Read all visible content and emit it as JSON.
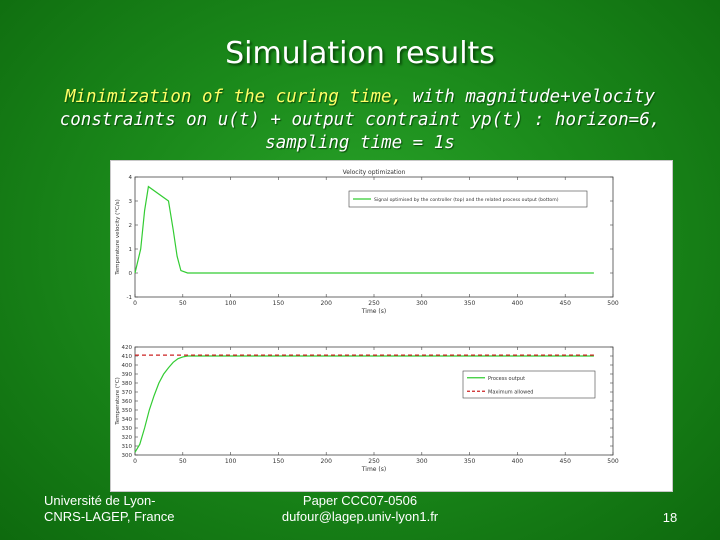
{
  "slide": {
    "title": "Simulation results",
    "subtitle_line1_italic": "Minimization of the curing time,",
    "subtitle_line1_rest": " with magnitude+velocity",
    "subtitle_line2": "constraints on u(t) + output contraint yp(t) : horizon=6,",
    "subtitle_line3": "sampling time = 1s"
  },
  "footer": {
    "left_line1": "Université de Lyon-",
    "left_line2": "CNRS-LAGEP, France",
    "center_line1": "Paper CCC07-0506",
    "center_line2": "dufour@lagep.univ-lyon1.fr",
    "page_number": "18"
  },
  "colors": {
    "green_series": "#33cc33",
    "red_series": "#cc2222",
    "axis": "#444444"
  },
  "chart_data": [
    {
      "type": "line",
      "title": "Velocity optimization",
      "xlabel": "Time (s)",
      "ylabel": "Temperature velocity (°C/s)",
      "xlim": [
        0,
        500
      ],
      "ylim": [
        -1,
        4
      ],
      "xticks": [
        0,
        50,
        100,
        150,
        200,
        250,
        300,
        350,
        400,
        450,
        500
      ],
      "yticks": [
        -1,
        0,
        1,
        2,
        3,
        4
      ],
      "legend_position": "top-right",
      "series": [
        {
          "name": "Signal optimised by the controller (top) and the related process output (bottom)",
          "color": "#33cc33",
          "x": [
            0,
            6,
            10,
            14,
            35,
            40,
            44,
            48,
            55,
            100,
            200,
            300,
            400,
            480
          ],
          "y": [
            0,
            1.0,
            2.6,
            3.6,
            3.0,
            1.8,
            0.7,
            0.1,
            0.0,
            0.0,
            0.0,
            0.0,
            0.0,
            0.0
          ]
        }
      ]
    },
    {
      "type": "line",
      "title": "",
      "xlabel": "Time (s)",
      "ylabel": "Temperature (°C)",
      "xlim": [
        0,
        500
      ],
      "ylim": [
        300,
        420
      ],
      "xticks": [
        0,
        50,
        100,
        150,
        200,
        250,
        300,
        350,
        400,
        450,
        500
      ],
      "yticks": [
        300,
        310,
        320,
        330,
        340,
        350,
        360,
        370,
        380,
        390,
        400,
        410,
        420
      ],
      "legend_position": "right",
      "series": [
        {
          "name": "Process output",
          "color": "#33cc33",
          "x": [
            0,
            5,
            10,
            15,
            20,
            25,
            30,
            35,
            40,
            45,
            50,
            55,
            100,
            200,
            300,
            400,
            480
          ],
          "y": [
            303,
            312,
            330,
            350,
            366,
            380,
            390,
            397,
            403,
            407,
            409,
            410,
            410,
            410,
            410,
            410,
            410
          ]
        },
        {
          "name": "Maximum allowed",
          "color": "#cc2222",
          "dashed": true,
          "x": [
            0,
            480
          ],
          "y": [
            411,
            411
          ]
        }
      ]
    }
  ]
}
